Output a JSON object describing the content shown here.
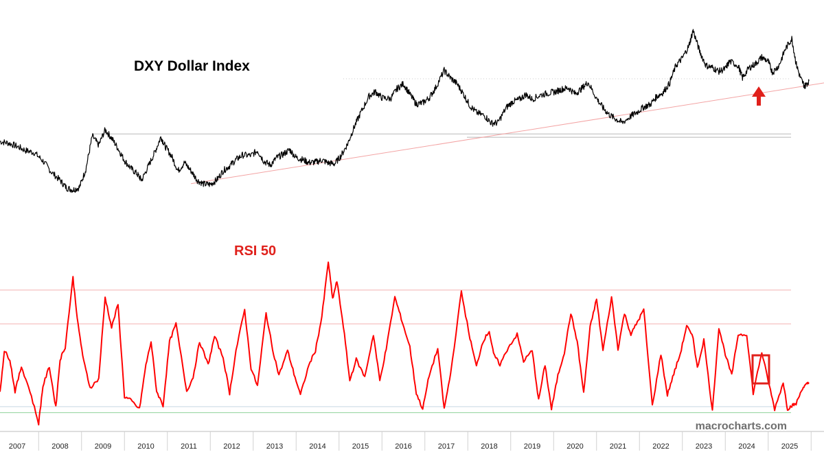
{
  "colors": {
    "price_line": "#000000",
    "rsi_line": "#ff0000",
    "accent": "#e0201b",
    "trendline": "#f3a3a3",
    "overbought_lines": "#f3b0b0",
    "oversold_line": "#8fd29a",
    "mid_line": "#c8d6e2",
    "resistance_lines": "#b8b8b8",
    "dotted_line": "#cccccc",
    "watermark": "#6f6f6f"
  },
  "watermark": "macrocharts.com",
  "chart_data": [
    {
      "type": "line",
      "name": "price-panel",
      "title": "DXY Dollar Index",
      "xlabel": "",
      "ylabel": "",
      "x_range": [
        2006.6,
        2025.8
      ],
      "ylim": [
        70,
        116
      ],
      "grid": false,
      "series": [
        {
          "name": "DXY",
          "x": [
            2006.6,
            2006.8,
            2007.0,
            2007.2,
            2007.4,
            2007.6,
            2007.8,
            2008.0,
            2008.15,
            2008.3,
            2008.45,
            2008.6,
            2008.75,
            2008.9,
            2009.05,
            2009.2,
            2009.35,
            2009.5,
            2009.65,
            2009.8,
            2009.9,
            2010.05,
            2010.2,
            2010.35,
            2010.45,
            2010.6,
            2010.75,
            2010.9,
            2011.05,
            2011.2,
            2011.35,
            2011.5,
            2011.65,
            2011.8,
            2011.95,
            2012.1,
            2012.25,
            2012.45,
            2012.6,
            2012.75,
            2012.9,
            2013.05,
            2013.2,
            2013.35,
            2013.5,
            2013.65,
            2013.8,
            2013.95,
            2014.1,
            2014.25,
            2014.4,
            2014.55,
            2014.7,
            2014.85,
            2015.0,
            2015.2,
            2015.35,
            2015.5,
            2015.7,
            2015.85,
            2016.0,
            2016.15,
            2016.3,
            2016.45,
            2016.6,
            2016.75,
            2016.95,
            2017.1,
            2017.25,
            2017.4,
            2017.55,
            2017.7,
            2017.9,
            2018.05,
            2018.2,
            2018.4,
            2018.55,
            2018.7,
            2018.85,
            2019.0,
            2019.2,
            2019.4,
            2019.55,
            2019.7,
            2019.85,
            2020.0,
            2020.15,
            2020.3,
            2020.5,
            2020.65,
            2020.8,
            2020.95,
            2021.1,
            2021.3,
            2021.45,
            2021.6,
            2021.75,
            2021.9,
            2022.05,
            2022.2,
            2022.35,
            2022.5,
            2022.65,
            2022.75,
            2022.9,
            2023.05,
            2023.2,
            2023.35,
            2023.5,
            2023.6,
            2023.8,
            2023.9,
            2024.05,
            2024.2,
            2024.35,
            2024.5,
            2024.6,
            2024.75,
            2024.9,
            2025.05,
            2025.15,
            2025.25,
            2025.35,
            2025.45
          ],
          "values": [
            85.2,
            84.8,
            84.0,
            83.0,
            82.5,
            80.5,
            77.8,
            75.8,
            74.0,
            73.5,
            74.1,
            78.5,
            86.5,
            84.3,
            88.0,
            86.0,
            83.5,
            80.6,
            78.7,
            77.3,
            75.8,
            79.1,
            82.4,
            86.3,
            84.0,
            81.6,
            78.1,
            80.1,
            78.1,
            75.8,
            74.9,
            74.8,
            75.9,
            78.1,
            79.3,
            80.8,
            81.9,
            81.8,
            83.0,
            80.4,
            79.5,
            81.3,
            82.1,
            83.2,
            81.3,
            80.8,
            80.1,
            80.2,
            80.7,
            80.0,
            79.8,
            81.8,
            84.6,
            88.6,
            92.0,
            96.1,
            97.2,
            95.7,
            95.5,
            97.9,
            99.1,
            96.6,
            94.2,
            94.5,
            95.7,
            98.1,
            102.3,
            100.5,
            99.1,
            96.6,
            93.8,
            92.2,
            91.3,
            89.6,
            89.7,
            93.4,
            94.8,
            95.3,
            96.5,
            95.4,
            96.4,
            96.9,
            97.2,
            97.8,
            98.1,
            96.7,
            97.9,
            99.5,
            95.6,
            93.3,
            91.6,
            90.6,
            89.7,
            91.3,
            92.3,
            93.5,
            94.1,
            96.0,
            97.0,
            99.2,
            103.5,
            105.3,
            108.2,
            112.0,
            107.0,
            103.5,
            103.0,
            102.1,
            102.7,
            104.5,
            103.5,
            100.5,
            102.9,
            103.9,
            105.5,
            104.5,
            101.8,
            103.5,
            107.5,
            110.0,
            104.0,
            100.5,
            98.5,
            99.8
          ]
        }
      ],
      "reference_lines": [
        {
          "label": "upper-dotted",
          "y": 100.3
        },
        {
          "label": "resistance-top",
          "y": 87.0
        },
        {
          "label": "resistance-bottom",
          "y": 86.2
        }
      ],
      "trendline": {
        "x": [
          2011.05,
          2025.8
        ],
        "y": [
          75.0,
          99.3
        ]
      },
      "annotation": "up-arrow at 2025.1"
    },
    {
      "type": "line",
      "name": "rsi-panel",
      "title": "RSI 50",
      "xlabel": "",
      "ylabel": "",
      "x_range": [
        2006.6,
        2025.8
      ],
      "ylim": [
        25,
        80
      ],
      "grid": false,
      "series": [
        {
          "name": "RSI 50",
          "x": [
            2006.6,
            2006.7,
            2006.83,
            2006.95,
            2007.1,
            2007.3,
            2007.5,
            2007.6,
            2007.75,
            2007.9,
            2008.0,
            2008.12,
            2008.3,
            2008.42,
            2008.55,
            2008.7,
            2008.9,
            2009.05,
            2009.2,
            2009.35,
            2009.5,
            2009.65,
            2009.85,
            2010.0,
            2010.12,
            2010.25,
            2010.4,
            2010.55,
            2010.7,
            2010.95,
            2011.1,
            2011.25,
            2011.45,
            2011.6,
            2011.8,
            2011.95,
            2012.1,
            2012.3,
            2012.45,
            2012.6,
            2012.8,
            2012.95,
            2013.1,
            2013.3,
            2013.45,
            2013.6,
            2013.8,
            2013.95,
            2014.1,
            2014.25,
            2014.35,
            2014.45,
            2014.6,
            2014.75,
            2014.9,
            2015.1,
            2015.3,
            2015.45,
            2015.6,
            2015.8,
            2015.95,
            2016.15,
            2016.3,
            2016.45,
            2016.6,
            2016.8,
            2016.95,
            2017.1,
            2017.35,
            2017.55,
            2017.7,
            2017.85,
            2018.0,
            2018.1,
            2018.25,
            2018.45,
            2018.65,
            2018.8,
            2019.0,
            2019.15,
            2019.3,
            2019.45,
            2019.6,
            2019.75,
            2019.9,
            2020.05,
            2020.2,
            2020.35,
            2020.5,
            2020.65,
            2020.85,
            2021.0,
            2021.15,
            2021.3,
            2021.45,
            2021.6,
            2021.8,
            2022.0,
            2022.15,
            2022.3,
            2022.45,
            2022.6,
            2022.75,
            2022.85,
            2023.0,
            2023.2,
            2023.35,
            2023.5,
            2023.65,
            2023.8,
            2024.0,
            2024.15,
            2024.35,
            2024.5,
            2024.65,
            2024.85,
            2024.95,
            2025.05,
            2025.15,
            2025.3,
            2025.4,
            2025.45
          ],
          "values": [
            35.0,
            47.0,
            44.5,
            35.5,
            42.5,
            35.5,
            26.5,
            37.0,
            42.5,
            31.0,
            44.5,
            48.0,
            67.5,
            54.0,
            44.0,
            36.5,
            39.0,
            62.0,
            53.5,
            60.0,
            34.0,
            33.0,
            30.5,
            43.0,
            49.5,
            35.5,
            31.5,
            49.5,
            54.5,
            35.5,
            39.5,
            49.5,
            43.0,
            51.0,
            45.0,
            35.0,
            47.0,
            58.5,
            42.0,
            37.0,
            57.5,
            47.5,
            40.0,
            47.0,
            40.5,
            34.5,
            43.0,
            47.0,
            56.5,
            72.0,
            61.5,
            66.5,
            54.0,
            38.5,
            44.5,
            39.5,
            51.5,
            38.5,
            47.5,
            62.0,
            56.0,
            48.0,
            35.0,
            30.5,
            40.0,
            47.5,
            30.5,
            40.5,
            63.5,
            50.5,
            42.5,
            49.5,
            52.5,
            46.0,
            43.0,
            48.0,
            51.5,
            44.0,
            47.0,
            33.0,
            43.0,
            30.5,
            40.0,
            46.5,
            57.5,
            49.5,
            35.0,
            53.5,
            61.5,
            47.0,
            62.0,
            47.5,
            57.5,
            51.5,
            55.0,
            58.5,
            31.5,
            46.0,
            34.5,
            40.5,
            46.0,
            54.0,
            50.5,
            42.0,
            50.0,
            30.0,
            53.5,
            46.0,
            40.0,
            51.5,
            51.5,
            35.0,
            46.5,
            38.5,
            30.5,
            38.0,
            30.5,
            31.5,
            32.0,
            36.5,
            37.5,
            38.0
          ]
        }
      ],
      "reference_lines": [
        {
          "label": "upper-band",
          "y": 64
        },
        {
          "label": "lower-band",
          "y": 54.5
        },
        {
          "label": "mid-line",
          "y": 31.2
        },
        {
          "label": "oversold",
          "y": 29.5
        }
      ],
      "annotation": "box around last values 2025.0-2025.4"
    }
  ],
  "x_axis": {
    "tick_labels": [
      "2007",
      "2008",
      "2009",
      "2010",
      "2011",
      "2012",
      "2013",
      "2014",
      "2015",
      "2016",
      "2017",
      "2018",
      "2019",
      "2020",
      "2021",
      "2022",
      "2023",
      "2024",
      "2025"
    ],
    "tick_values": [
      2007,
      2008,
      2009,
      2010,
      2011,
      2012,
      2013,
      2014,
      2015,
      2016,
      2017,
      2018,
      2019,
      2020,
      2021,
      2022,
      2023,
      2024,
      2025
    ]
  }
}
